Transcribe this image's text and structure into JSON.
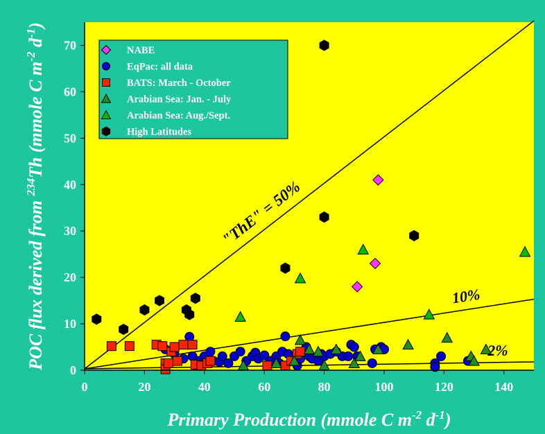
{
  "colors": {
    "background": "#1ec6a0",
    "plot_area": "#ffff00",
    "axis_text": "#ffffff",
    "legend_box": "#1ec6a0",
    "line": "#000000"
  },
  "chart_data": {
    "type": "scatter",
    "xlabel_main": "Primary Production (mmole C m",
    "xlabel_sup1": "-2",
    "xlabel_mid": " d",
    "xlabel_sup2": "-1",
    "xlabel_end": ")",
    "ylabel_main": "POC flux derived from ",
    "ylabel_sup1": "234",
    "ylabel_mid": "Th (mmole C m",
    "ylabel_sup2": "-2",
    "ylabel_mid2": " d",
    "ylabel_sup3": "-1",
    "ylabel_end": ")",
    "xlim": [
      0,
      150
    ],
    "ylim": [
      0,
      75
    ],
    "x_ticks": [
      0,
      20,
      40,
      60,
      80,
      100,
      120,
      140
    ],
    "y_ticks": [
      0,
      10,
      20,
      30,
      40,
      50,
      60,
      70
    ],
    "lines": [
      {
        "label": "\"ThE\" = 50%",
        "slope": 0.5,
        "intercept": 0.3
      },
      {
        "label": "10%",
        "slope": 0.1,
        "intercept": 0.3
      },
      {
        "label": "2%",
        "slope": 0.01,
        "intercept": 0.3
      }
    ],
    "series": [
      {
        "name": "NABE",
        "marker": "diamond",
        "color": "#ff33ff",
        "points": [
          [
            91,
            18
          ],
          [
            97,
            23
          ],
          [
            98,
            41
          ]
        ]
      },
      {
        "name": "EqPac: all data",
        "marker": "circle",
        "color": "#0000cc",
        "points": [
          [
            27,
            4.5
          ],
          [
            30,
            3.5
          ],
          [
            33,
            2.5
          ],
          [
            35,
            7.2
          ],
          [
            36,
            3
          ],
          [
            37,
            1
          ],
          [
            38,
            2
          ],
          [
            40,
            3
          ],
          [
            42,
            4
          ],
          [
            43,
            2
          ],
          [
            45,
            1.8
          ],
          [
            46,
            3
          ],
          [
            48,
            1.5
          ],
          [
            50,
            3
          ],
          [
            52,
            4
          ],
          [
            54,
            2
          ],
          [
            56,
            3
          ],
          [
            57,
            3.8
          ],
          [
            58,
            2.5
          ],
          [
            60,
            3.2
          ],
          [
            62,
            2
          ],
          [
            64,
            3
          ],
          [
            65,
            1.5
          ],
          [
            66,
            4
          ],
          [
            67,
            7.3
          ],
          [
            68,
            3.5
          ],
          [
            70,
            3
          ],
          [
            71,
            1
          ],
          [
            72,
            2.5
          ],
          [
            74,
            5
          ],
          [
            75,
            3
          ],
          [
            76,
            2.5
          ],
          [
            78,
            2
          ],
          [
            79,
            3.5
          ],
          [
            80,
            3
          ],
          [
            82,
            3.5
          ],
          [
            84,
            4
          ],
          [
            86,
            3
          ],
          [
            88,
            3
          ],
          [
            89,
            5.5
          ],
          [
            90,
            5
          ],
          [
            91,
            3
          ],
          [
            96,
            1.5
          ],
          [
            97,
            4.5
          ],
          [
            99,
            5
          ],
          [
            100,
            4.5
          ],
          [
            117,
            1.5
          ],
          [
            117,
            0.7
          ],
          [
            119,
            3
          ],
          [
            128,
            2
          ]
        ]
      },
      {
        "name": "BATS: March - October",
        "marker": "square",
        "color": "#ff2200",
        "points": [
          [
            9,
            5.2
          ],
          [
            15,
            5.2
          ],
          [
            24,
            5.5
          ],
          [
            26,
            5.2
          ],
          [
            27,
            1.5
          ],
          [
            27,
            0.2
          ],
          [
            28,
            1.5
          ],
          [
            29,
            4
          ],
          [
            30,
            5
          ],
          [
            31,
            2
          ],
          [
            33,
            5.5
          ],
          [
            36,
            5.5
          ],
          [
            37,
            1.2
          ],
          [
            39,
            1
          ],
          [
            41,
            1.5
          ],
          [
            42,
            2
          ],
          [
            61,
            1
          ],
          [
            67,
            1
          ],
          [
            69,
            2
          ],
          [
            71,
            3.5
          ],
          [
            72,
            4
          ]
        ]
      },
      {
        "name": "Arabian Sea: Jan. - July",
        "marker": "triangle",
        "color": "#228b22",
        "points": [
          [
            53,
            1
          ],
          [
            64,
            1.5
          ],
          [
            70,
            2
          ],
          [
            72,
            6.5
          ],
          [
            75,
            4.5
          ],
          [
            78,
            4
          ],
          [
            80,
            1
          ],
          [
            84,
            4.5
          ],
          [
            90,
            1.5
          ],
          [
            92,
            3
          ],
          [
            98,
            4.5
          ],
          [
            108,
            5.5
          ],
          [
            121,
            7
          ],
          [
            129,
            3
          ],
          [
            130,
            2
          ],
          [
            134,
            4.5
          ]
        ]
      },
      {
        "name": "Arabian Sea: Aug./Sept.",
        "marker": "triangle",
        "color": "#00bb00",
        "points": [
          [
            52,
            11.5
          ],
          [
            72,
            19.8
          ],
          [
            93,
            26
          ],
          [
            115,
            12
          ],
          [
            147,
            25.5
          ]
        ]
      },
      {
        "name": "High Latitudes",
        "marker": "hexagon",
        "color": "#000000",
        "points": [
          [
            4,
            11
          ],
          [
            13,
            8.8
          ],
          [
            20,
            13
          ],
          [
            25,
            15
          ],
          [
            34,
            13
          ],
          [
            35,
            12
          ],
          [
            37,
            15.5
          ],
          [
            67,
            22
          ],
          [
            80,
            70
          ],
          [
            80,
            33
          ],
          [
            110,
            29
          ]
        ]
      }
    ]
  }
}
